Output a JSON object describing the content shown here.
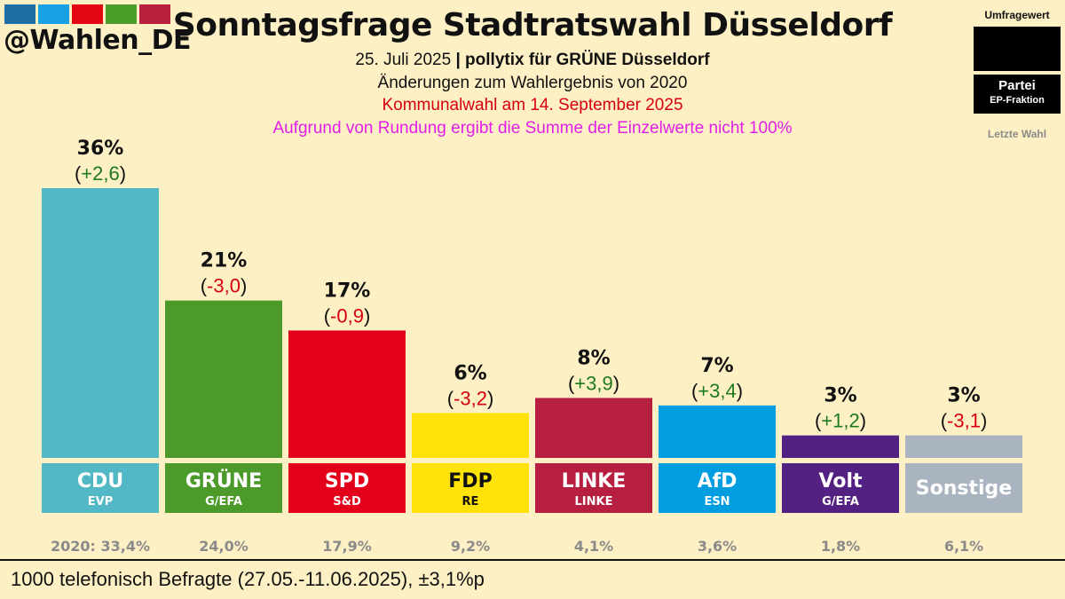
{
  "header": {
    "handle": "@Wahlen_DE",
    "logo_colors": [
      "#1e6fa3",
      "#1aa0e4",
      "#e30613",
      "#4b9e2a",
      "#b8203c"
    ],
    "title": "Sonntagsfrage Stadtratswahl Düsseldorf",
    "date": "25. Juli 2025",
    "separator": "|",
    "pollster": "pollytix für GRÜNE Düsseldorf",
    "subtitle": "Änderungen zum Wahlergebnis von 2020",
    "election_note": "Kommunalwahl am 14. September 2025",
    "rounding_note": "Aufgrund von Rundung ergibt die Summe der Einzelwerte nicht 100%"
  },
  "legend": {
    "value_label": "Umfragewert",
    "party_label": "Partei",
    "group_label": "EP-Fraktion",
    "last_label": "Letzte Wahl"
  },
  "footer": {
    "text": "1000 telefonisch Befragte (27.05.-11.06.2025), ±3,1%p"
  },
  "chart_data": {
    "type": "bar",
    "title": "Sonntagsfrage Stadtratswahl Düsseldorf",
    "categories": [
      "CDU",
      "GRÜNE",
      "SPD",
      "FDP",
      "LINKE",
      "AfD",
      "Volt",
      "Sonstige"
    ],
    "groups": [
      "EVP",
      "G/EFA",
      "S&D",
      "RE",
      "LINKE",
      "ESN",
      "G/EFA",
      ""
    ],
    "values": [
      36,
      21,
      17,
      6,
      8,
      7,
      3,
      3
    ],
    "value_labels": [
      "36%",
      "21%",
      "17%",
      "6%",
      "8%",
      "7%",
      "3%",
      "3%"
    ],
    "changes": [
      "+2,6",
      "-3,0",
      "-0,9",
      "-3,2",
      "+3,9",
      "+3,4",
      "+1,2",
      "-3,1"
    ],
    "previous_labels": [
      "2020: 33,4%",
      "24,0%",
      "17,9%",
      "9,2%",
      "4,1%",
      "3,6%",
      "1,8%",
      "6,1%"
    ],
    "colors": [
      "#52b8c6",
      "#4b9a2a",
      "#e2001a",
      "#ffe20a",
      "#b61f40",
      "#009ee0",
      "#532181",
      "#aab4c1"
    ],
    "label_colors": [
      "#ffffff",
      "#ffffff",
      "#ffffff",
      "#111111",
      "#ffffff",
      "#ffffff",
      "#ffffff",
      "#ffffff"
    ],
    "positive_color": "#1e7a1e",
    "negative_color": "#d7000f",
    "ylim": [
      0,
      36
    ]
  }
}
